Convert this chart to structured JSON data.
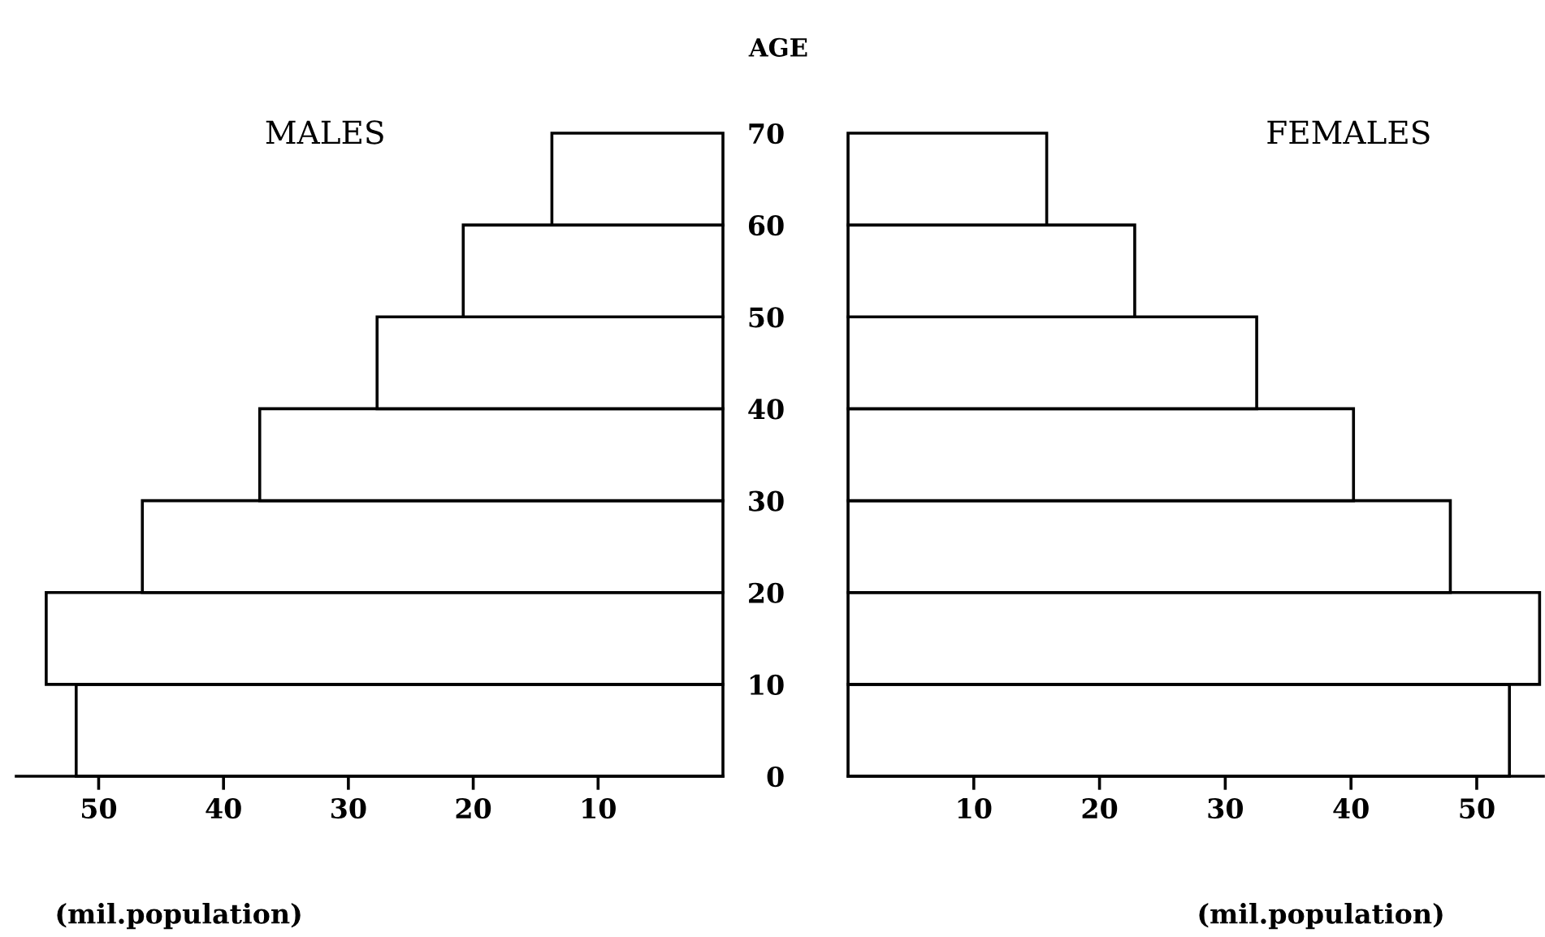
{
  "chart_data": [
    {
      "type": "histogram",
      "orientation": "horizontal",
      "title": "MALES",
      "xlabel": "(mil.population)",
      "bins": [
        0,
        10,
        20,
        30,
        40,
        50,
        60,
        70
      ],
      "values": [
        51.8,
        54.2,
        46.5,
        37.1,
        27.7,
        20.8,
        13.7
      ],
      "color": "#ffffff",
      "xlim": [
        56.6,
        0
      ],
      "xticks": [
        50,
        40,
        30,
        20,
        10
      ],
      "ylim": [
        0,
        70
      ],
      "yticks": [
        0,
        10,
        20,
        30,
        40,
        50,
        60,
        70
      ],
      "tick_labels": "x",
      "grid": false
    },
    {
      "type": "histogram",
      "orientation": "horizontal",
      "title": "FEMALES",
      "xlabel": "(mil.population)",
      "ylabel": "AGE",
      "bins": [
        0,
        10,
        20,
        30,
        40,
        50,
        60,
        70
      ],
      "values": [
        52.6,
        55.0,
        47.9,
        40.2,
        32.5,
        22.8,
        15.8
      ],
      "color": "#ffffff",
      "xlim": [
        0,
        55.3
      ],
      "xticks": [
        10,
        20,
        30,
        40,
        50
      ],
      "ylim": [
        0,
        70
      ],
      "yticks": [
        0,
        10,
        20,
        30,
        40,
        50,
        60,
        70
      ],
      "grid": false
    }
  ]
}
